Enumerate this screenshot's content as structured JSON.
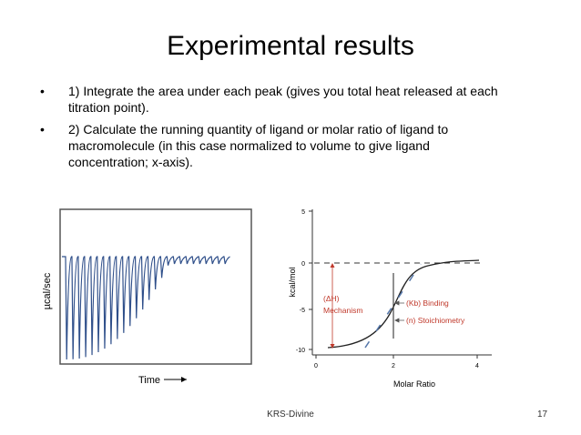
{
  "title": "Experimental results",
  "bullets": [
    "1) Integrate the area under each peak (gives you total heat released at each titration point).",
    "2) Calculate the running quantity of ligand or molar ratio of ligand to macromolecule (in this case normalized to volume to give ligand concentration; x-axis)."
  ],
  "figure_left": {
    "y_label": "µcal/sec",
    "x_label": "Time"
  },
  "figure_right": {
    "y_label": "kcal/mol",
    "x_label": "Molar Ratio",
    "y_tick_labels": [
      "5",
      "0",
      "-5",
      "-10"
    ],
    "x_tick_labels": [
      "0",
      "2",
      "4"
    ],
    "annotations": [
      "(ΔH)",
      "Mechanism",
      "(Kb) Binding",
      "(n) Stoichiometry"
    ]
  },
  "footer": {
    "text": "KRS-Divine",
    "page": "17"
  }
}
